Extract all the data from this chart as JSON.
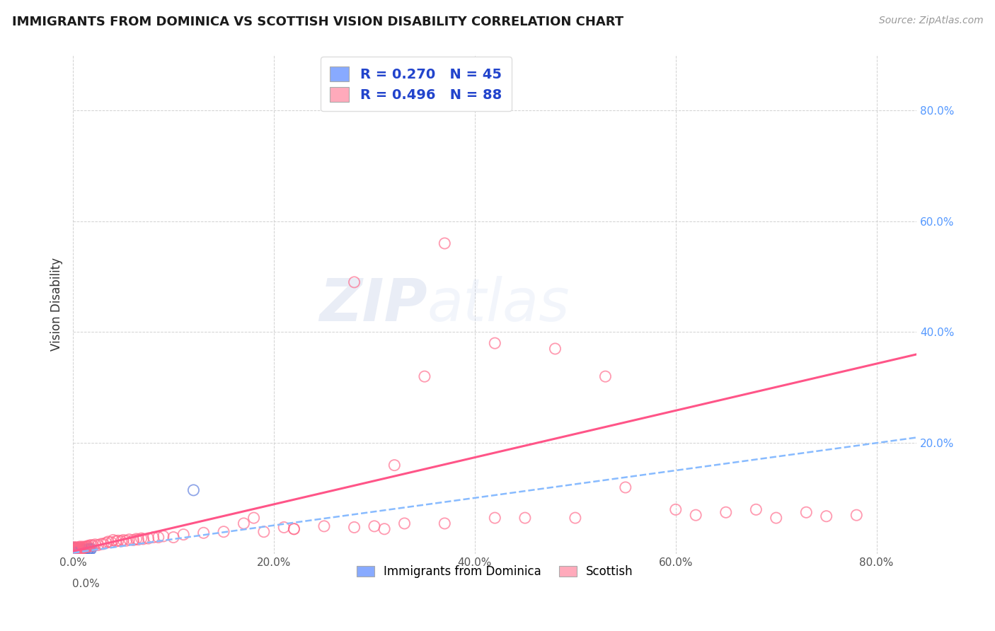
{
  "title": "IMMIGRANTS FROM DOMINICA VS SCOTTISH VISION DISABILITY CORRELATION CHART",
  "source": "Source: ZipAtlas.com",
  "ylabel": "Vision Disability",
  "xlim": [
    0.0,
    0.84
  ],
  "ylim": [
    0.0,
    0.9
  ],
  "xticks": [
    0.0,
    0.2,
    0.4,
    0.6,
    0.8
  ],
  "yticks": [
    0.2,
    0.4,
    0.6,
    0.8
  ],
  "xticklabels": [
    "0.0%",
    "20.0%",
    "40.0%",
    "60.0%",
    "80.0%"
  ],
  "yticklabels_right": [
    "20.0%",
    "40.0%",
    "60.0%",
    "80.0%"
  ],
  "background_color": "#ffffff",
  "grid_color": "#cccccc",
  "watermark_zip": "ZIP",
  "watermark_atlas": "atlas",
  "series": [
    {
      "name": "Immigrants from Dominica",
      "color": "#88aaff",
      "edge_color": "#5577dd",
      "R": 0.27,
      "N": 45,
      "trend_style": "dashed",
      "trend_color": "#88bbff",
      "trend_x0": 0.0,
      "trend_y0": 0.002,
      "trend_x1": 0.84,
      "trend_y1": 0.21,
      "x": [
        0.001,
        0.001,
        0.001,
        0.001,
        0.001,
        0.001,
        0.001,
        0.002,
        0.002,
        0.002,
        0.002,
        0.002,
        0.002,
        0.003,
        0.003,
        0.003,
        0.003,
        0.004,
        0.004,
        0.004,
        0.005,
        0.005,
        0.005,
        0.006,
        0.006,
        0.006,
        0.007,
        0.007,
        0.007,
        0.008,
        0.008,
        0.009,
        0.009,
        0.01,
        0.01,
        0.011,
        0.012,
        0.013,
        0.014,
        0.015,
        0.016,
        0.017,
        0.018,
        0.12,
        0.001
      ],
      "y": [
        0.005,
        0.006,
        0.007,
        0.008,
        0.009,
        0.01,
        0.011,
        0.005,
        0.006,
        0.007,
        0.008,
        0.009,
        0.01,
        0.005,
        0.007,
        0.009,
        0.011,
        0.005,
        0.007,
        0.009,
        0.005,
        0.007,
        0.009,
        0.005,
        0.007,
        0.009,
        0.005,
        0.007,
        0.009,
        0.005,
        0.008,
        0.006,
        0.009,
        0.005,
        0.008,
        0.006,
        0.007,
        0.008,
        0.007,
        0.008,
        0.009,
        0.008,
        0.009,
        0.115,
        0.002
      ]
    },
    {
      "name": "Scottish",
      "color": "#ffaabb",
      "edge_color": "#ff6688",
      "R": 0.496,
      "N": 88,
      "trend_style": "solid",
      "trend_color": "#ff5588",
      "trend_x0": 0.0,
      "trend_y0": 0.005,
      "trend_x1": 0.84,
      "trend_y1": 0.36,
      "x": [
        0.001,
        0.001,
        0.001,
        0.001,
        0.002,
        0.002,
        0.002,
        0.003,
        0.003,
        0.003,
        0.004,
        0.004,
        0.005,
        0.005,
        0.006,
        0.006,
        0.007,
        0.007,
        0.008,
        0.009,
        0.01,
        0.01,
        0.011,
        0.012,
        0.013,
        0.014,
        0.015,
        0.016,
        0.018,
        0.02,
        0.022,
        0.025,
        0.028,
        0.03,
        0.033,
        0.035,
        0.038,
        0.04,
        0.043,
        0.045,
        0.048,
        0.05,
        0.053,
        0.056,
        0.06,
        0.063,
        0.065,
        0.068,
        0.07,
        0.075,
        0.08,
        0.085,
        0.09,
        0.1,
        0.11,
        0.13,
        0.15,
        0.17,
        0.19,
        0.21,
        0.22,
        0.25,
        0.28,
        0.3,
        0.31,
        0.33,
        0.35,
        0.37,
        0.42,
        0.45,
        0.5,
        0.55,
        0.6,
        0.62,
        0.65,
        0.68,
        0.7,
        0.73,
        0.75,
        0.78,
        0.28,
        0.42,
        0.37,
        0.32,
        0.48,
        0.53,
        0.22,
        0.18
      ],
      "y": [
        0.005,
        0.007,
        0.009,
        0.012,
        0.006,
        0.008,
        0.011,
        0.006,
        0.009,
        0.012,
        0.007,
        0.01,
        0.007,
        0.011,
        0.008,
        0.012,
        0.009,
        0.013,
        0.01,
        0.011,
        0.01,
        0.013,
        0.012,
        0.012,
        0.013,
        0.014,
        0.013,
        0.015,
        0.016,
        0.015,
        0.017,
        0.016,
        0.018,
        0.018,
        0.02,
        0.022,
        0.021,
        0.025,
        0.023,
        0.024,
        0.023,
        0.025,
        0.024,
        0.026,
        0.025,
        0.027,
        0.026,
        0.028,
        0.027,
        0.028,
        0.03,
        0.03,
        0.032,
        0.03,
        0.035,
        0.038,
        0.04,
        0.055,
        0.04,
        0.048,
        0.045,
        0.05,
        0.048,
        0.05,
        0.045,
        0.055,
        0.32,
        0.055,
        0.065,
        0.065,
        0.065,
        0.12,
        0.08,
        0.07,
        0.075,
        0.08,
        0.065,
        0.075,
        0.068,
        0.07,
        0.49,
        0.38,
        0.56,
        0.16,
        0.37,
        0.32,
        0.045,
        0.065
      ]
    }
  ]
}
